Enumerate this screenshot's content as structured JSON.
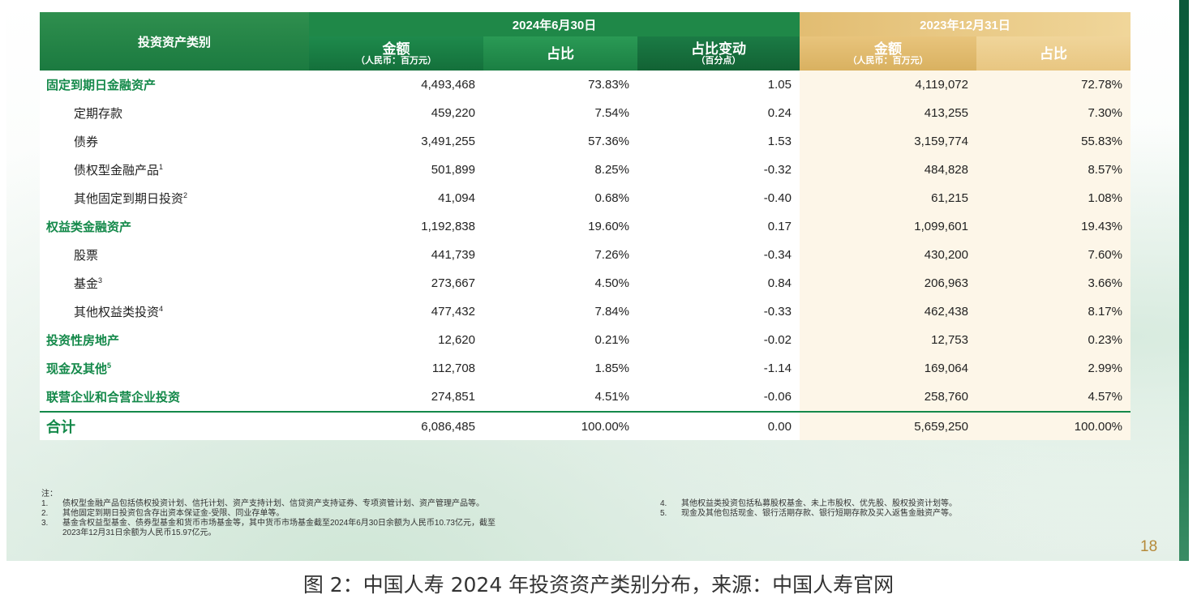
{
  "header": {
    "category_label": "投资资产类别",
    "period_2024": "2024年6月30日",
    "period_2023": "2023年12月31日",
    "amount_label": "金额",
    "amount_unit": "（人民币：百万元）",
    "ratio_label": "占比",
    "change_label": "占比变动",
    "change_unit": "（百分点）"
  },
  "rows": [
    {
      "label": "固定到期日金融资产",
      "sup": "",
      "level": "main",
      "a2024": "4,493,468",
      "r2024": "73.83%",
      "chg": "1.05",
      "a2023": "4,119,072",
      "r2023": "72.78%"
    },
    {
      "label": "定期存款",
      "sup": "",
      "level": "sub",
      "a2024": "459,220",
      "r2024": "7.54%",
      "chg": "0.24",
      "a2023": "413,255",
      "r2023": "7.30%"
    },
    {
      "label": "债券",
      "sup": "",
      "level": "sub",
      "a2024": "3,491,255",
      "r2024": "57.36%",
      "chg": "1.53",
      "a2023": "3,159,774",
      "r2023": "55.83%"
    },
    {
      "label": "债权型金融产品",
      "sup": "1",
      "level": "sub",
      "a2024": "501,899",
      "r2024": "8.25%",
      "chg": "-0.32",
      "a2023": "484,828",
      "r2023": "8.57%"
    },
    {
      "label": "其他固定到期日投资",
      "sup": "2",
      "level": "sub",
      "a2024": "41,094",
      "r2024": "0.68%",
      "chg": "-0.40",
      "a2023": "61,215",
      "r2023": "1.08%"
    },
    {
      "label": "权益类金融资产",
      "sup": "",
      "level": "main",
      "a2024": "1,192,838",
      "r2024": "19.60%",
      "chg": "0.17",
      "a2023": "1,099,601",
      "r2023": "19.43%"
    },
    {
      "label": "股票",
      "sup": "",
      "level": "sub",
      "a2024": "441,739",
      "r2024": "7.26%",
      "chg": "-0.34",
      "a2023": "430,200",
      "r2023": "7.60%"
    },
    {
      "label": "基金",
      "sup": "3",
      "level": "sub",
      "a2024": "273,667",
      "r2024": "4.50%",
      "chg": "0.84",
      "a2023": "206,963",
      "r2023": "3.66%"
    },
    {
      "label": "其他权益类投资",
      "sup": "4",
      "level": "sub",
      "a2024": "477,432",
      "r2024": "7.84%",
      "chg": "-0.33",
      "a2023": "462,438",
      "r2023": "8.17%"
    },
    {
      "label": "投资性房地产",
      "sup": "",
      "level": "main",
      "a2024": "12,620",
      "r2024": "0.21%",
      "chg": "-0.02",
      "a2023": "12,753",
      "r2023": "0.23%"
    },
    {
      "label": "现金及其他",
      "sup": "5",
      "level": "main",
      "a2024": "112,708",
      "r2024": "1.85%",
      "chg": "-1.14",
      "a2023": "169,064",
      "r2023": "2.99%"
    },
    {
      "label": "联营企业和合营企业投资",
      "sup": "",
      "level": "main",
      "a2024": "274,851",
      "r2024": "4.51%",
      "chg": "-0.06",
      "a2023": "258,760",
      "r2023": "4.57%"
    }
  ],
  "total": {
    "label": "合计",
    "a2024": "6,086,485",
    "r2024": "100.00%",
    "chg": "0.00",
    "a2023": "5,659,250",
    "r2023": "100.00%"
  },
  "notes": {
    "title": "注：",
    "left": [
      {
        "k": "1.",
        "t": "债权型金融产品包括债权投资计划、信托计划、资产支持计划、信贷资产支持证券、专项资管计划、资产管理产品等。"
      },
      {
        "k": "2.",
        "t": "其他固定到期日投资包含存出资本保证金-受限、同业存单等。"
      },
      {
        "k": "3.",
        "t": "基金含权益型基金、债券型基金和货币市场基金等，其中货币市场基金截至2024年6月30日余额为人民币10.73亿元，截至"
      },
      {
        "k": "",
        "t": "2023年12月31日余额为人民币15.97亿元。"
      }
    ],
    "right": [
      {
        "k": "4.",
        "t": "其他权益类投资包括私募股权基金、未上市股权、优先股、股权投资计划等。"
      },
      {
        "k": "5.",
        "t": "现金及其他包括现金、银行活期存款、银行短期存款及买入返售金融资产等。"
      }
    ]
  },
  "page_number": "18",
  "caption": "图 2：中国人寿 2024 年投资资产类别分布，来源：中国人寿官网"
}
